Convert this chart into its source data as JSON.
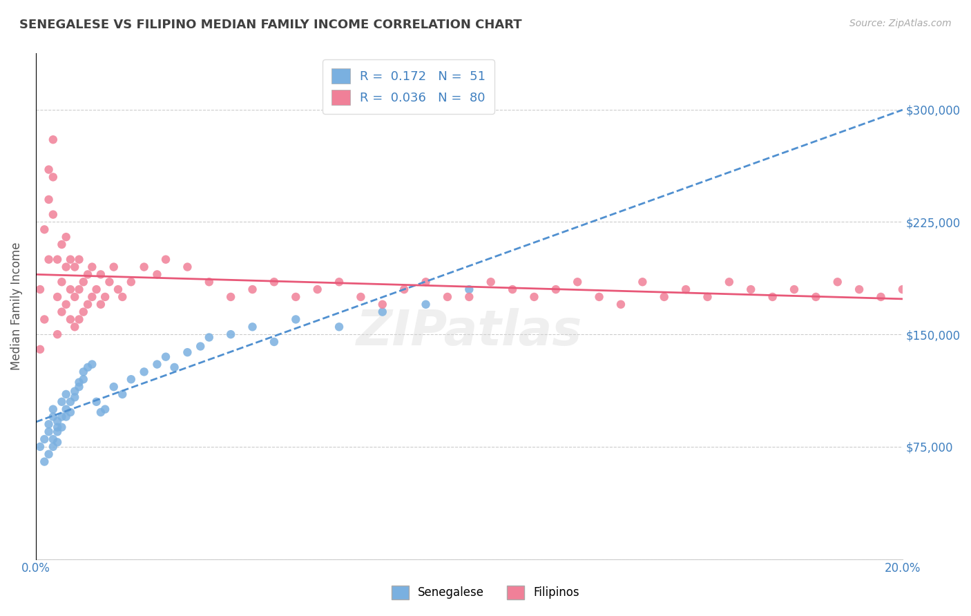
{
  "title": "SENEGALESE VS FILIPINO MEDIAN FAMILY INCOME CORRELATION CHART",
  "source": "Source: ZipAtlas.com",
  "xlabel_bottom": "",
  "ylabel": "Median Family Income",
  "xlim": [
    0.0,
    0.2
  ],
  "ylim": [
    0,
    337500
  ],
  "yticks": [
    0,
    75000,
    150000,
    225000,
    300000
  ],
  "ytick_labels": [
    "",
    "$75,000",
    "$150,000",
    "$225,000",
    "$300,000"
  ],
  "xticks": [
    0.0,
    0.05,
    0.1,
    0.15,
    0.2
  ],
  "xtick_labels": [
    "0.0%",
    "",
    "",
    "",
    "20.0%"
  ],
  "watermark": "ZIPatlas",
  "legend_entries": [
    {
      "label": "R =  0.172   N =  51",
      "color": "#aac4e8",
      "type": "scatter"
    },
    {
      "label": "R =  0.036   N =  80",
      "color": "#f4a0b0",
      "type": "scatter"
    }
  ],
  "senegalese_color": "#7ab0e0",
  "filipino_color": "#f08098",
  "senegalese_line_color": "#5090d0",
  "filipino_line_color": "#e85878",
  "blue_text_color": "#4080c0",
  "title_color": "#404040",
  "background_color": "#ffffff",
  "grid_color": "#cccccc",
  "senegalese_R": 0.172,
  "senegalese_N": 51,
  "filipino_R": 0.036,
  "filipino_N": 80,
  "senegalese_x": [
    0.001,
    0.002,
    0.002,
    0.003,
    0.003,
    0.003,
    0.004,
    0.004,
    0.004,
    0.004,
    0.005,
    0.005,
    0.005,
    0.005,
    0.006,
    0.006,
    0.006,
    0.007,
    0.007,
    0.007,
    0.008,
    0.008,
    0.009,
    0.009,
    0.01,
    0.01,
    0.011,
    0.011,
    0.012,
    0.013,
    0.014,
    0.015,
    0.016,
    0.018,
    0.02,
    0.022,
    0.025,
    0.028,
    0.03,
    0.032,
    0.035,
    0.038,
    0.04,
    0.045,
    0.05,
    0.055,
    0.06,
    0.07,
    0.08,
    0.09,
    0.1
  ],
  "senegalese_y": [
    75000,
    65000,
    80000,
    70000,
    90000,
    85000,
    95000,
    80000,
    75000,
    100000,
    88000,
    92000,
    78000,
    85000,
    95000,
    105000,
    88000,
    100000,
    95000,
    110000,
    98000,
    105000,
    112000,
    108000,
    115000,
    118000,
    120000,
    125000,
    128000,
    130000,
    105000,
    98000,
    100000,
    115000,
    110000,
    120000,
    125000,
    130000,
    135000,
    128000,
    138000,
    142000,
    148000,
    150000,
    155000,
    145000,
    160000,
    155000,
    165000,
    170000,
    180000
  ],
  "filipino_x": [
    0.001,
    0.001,
    0.002,
    0.002,
    0.003,
    0.003,
    0.003,
    0.004,
    0.004,
    0.004,
    0.005,
    0.005,
    0.005,
    0.006,
    0.006,
    0.006,
    0.007,
    0.007,
    0.007,
    0.008,
    0.008,
    0.008,
    0.009,
    0.009,
    0.009,
    0.01,
    0.01,
    0.01,
    0.011,
    0.011,
    0.012,
    0.012,
    0.013,
    0.013,
    0.014,
    0.015,
    0.015,
    0.016,
    0.017,
    0.018,
    0.019,
    0.02,
    0.022,
    0.025,
    0.028,
    0.03,
    0.035,
    0.04,
    0.045,
    0.05,
    0.055,
    0.06,
    0.065,
    0.07,
    0.075,
    0.08,
    0.085,
    0.09,
    0.095,
    0.1,
    0.105,
    0.11,
    0.115,
    0.12,
    0.125,
    0.13,
    0.135,
    0.14,
    0.145,
    0.15,
    0.155,
    0.16,
    0.165,
    0.17,
    0.175,
    0.18,
    0.185,
    0.19,
    0.195,
    0.2
  ],
  "filipino_y": [
    140000,
    180000,
    160000,
    220000,
    200000,
    240000,
    260000,
    230000,
    255000,
    280000,
    150000,
    175000,
    200000,
    165000,
    185000,
    210000,
    170000,
    195000,
    215000,
    160000,
    180000,
    200000,
    155000,
    175000,
    195000,
    160000,
    180000,
    200000,
    165000,
    185000,
    170000,
    190000,
    175000,
    195000,
    180000,
    170000,
    190000,
    175000,
    185000,
    195000,
    180000,
    175000,
    185000,
    195000,
    190000,
    200000,
    195000,
    185000,
    175000,
    180000,
    185000,
    175000,
    180000,
    185000,
    175000,
    170000,
    180000,
    185000,
    175000,
    175000,
    185000,
    180000,
    175000,
    180000,
    185000,
    175000,
    170000,
    185000,
    175000,
    180000,
    175000,
    185000,
    180000,
    175000,
    180000,
    175000,
    185000,
    180000,
    175000,
    180000
  ]
}
